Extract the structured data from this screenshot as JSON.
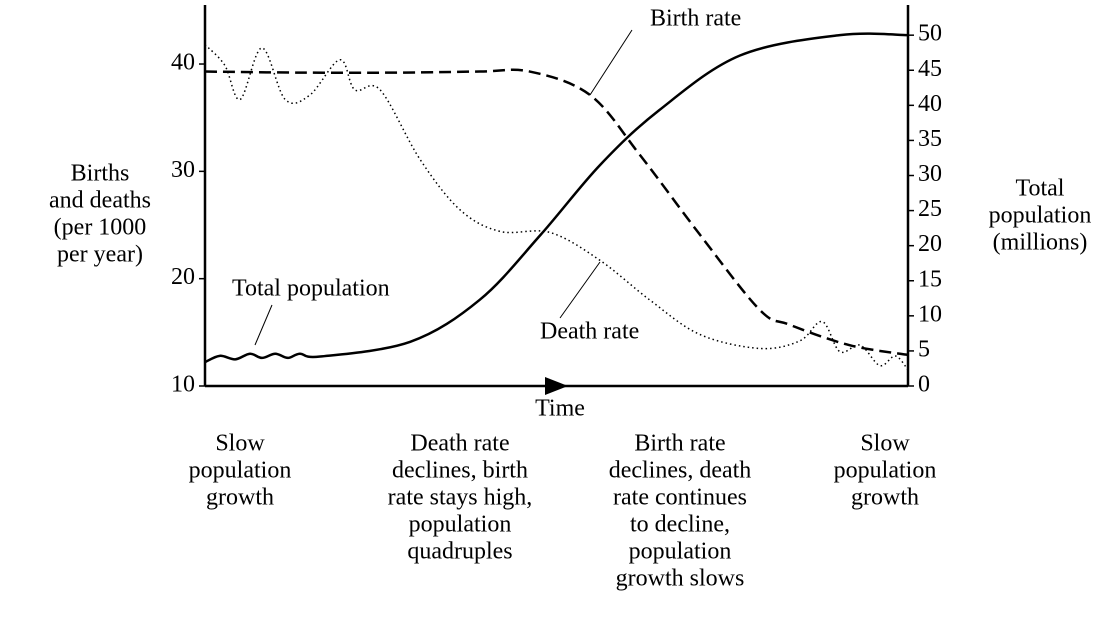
{
  "chart_data": {
    "type": "line",
    "x_label": "Time",
    "y_label": [
      "Births",
      "and deaths",
      "(per 1000",
      "per year)"
    ],
    "y2_label": [
      "Total",
      "population",
      "(millions)"
    ],
    "xlim": [
      0,
      100
    ],
    "ylim": [
      10,
      45.5
    ],
    "yticks": [
      10,
      20,
      30,
      40
    ],
    "y2lim": [
      0,
      54.3
    ],
    "y2ticks": [
      0,
      5,
      10,
      15,
      20,
      25,
      30,
      35,
      40,
      45,
      50
    ],
    "grid": false,
    "series": [
      {
        "name": "Birth rate",
        "color": "#000000",
        "dash": "dashed",
        "axis": "y",
        "x": [
          0,
          13.5,
          27.7,
          39.1,
          46.2,
          54.8,
          61.9,
          70.4,
          78.9,
          83.2,
          91.7,
          100
        ],
        "values": [
          39.3,
          39.2,
          39.2,
          39.3,
          39.3,
          37.1,
          31.5,
          24.1,
          17.1,
          15.7,
          13.8,
          12.9
        ]
      },
      {
        "name": "Death rate",
        "color": "#000000",
        "dash": "dotted",
        "axis": "y",
        "x": [
          0,
          2.8,
          5,
          8.1,
          11.4,
          14.9,
          19.2,
          21.3,
          24.9,
          30.6,
          36.3,
          42,
          49.1,
          56.2,
          63.3,
          70.4,
          78.9,
          84.6,
          87.8,
          90.3,
          93.2,
          96,
          98.2,
          100
        ],
        "values": [
          41.8,
          39.9,
          36.7,
          41.5,
          36.7,
          37.1,
          40.4,
          37.6,
          37.6,
          31.1,
          26.4,
          24.4,
          24.3,
          21.7,
          18,
          14.8,
          13.5,
          14.2,
          16,
          13.2,
          13.8,
          11.9,
          12.8,
          11.5
        ]
      },
      {
        "name": "Total population",
        "color": "#000000",
        "dash": "solid",
        "axis": "y2",
        "x": [
          0,
          2.1,
          4.3,
          6.4,
          8.1,
          10,
          11.8,
          13.5,
          16.4,
          29.2,
          39.1,
          47.7,
          56.2,
          64.6,
          76.1,
          90.3,
          100
        ],
        "values": [
          3.4,
          4.3,
          3.8,
          4.6,
          4,
          4.6,
          4,
          4.6,
          4.2,
          6.3,
          12.3,
          21.5,
          31.5,
          39.3,
          47.1,
          50,
          50
        ]
      }
    ],
    "stages": [
      [
        "Slow",
        "population",
        "growth"
      ],
      [
        "Death rate",
        "declines, birth",
        "rate stays high,",
        "population",
        "quadruples"
      ],
      [
        "Birth rate",
        "declines, death",
        "rate continues",
        "to decline,",
        "population",
        "growth slows"
      ],
      [
        "Slow",
        "population",
        "growth"
      ]
    ]
  }
}
